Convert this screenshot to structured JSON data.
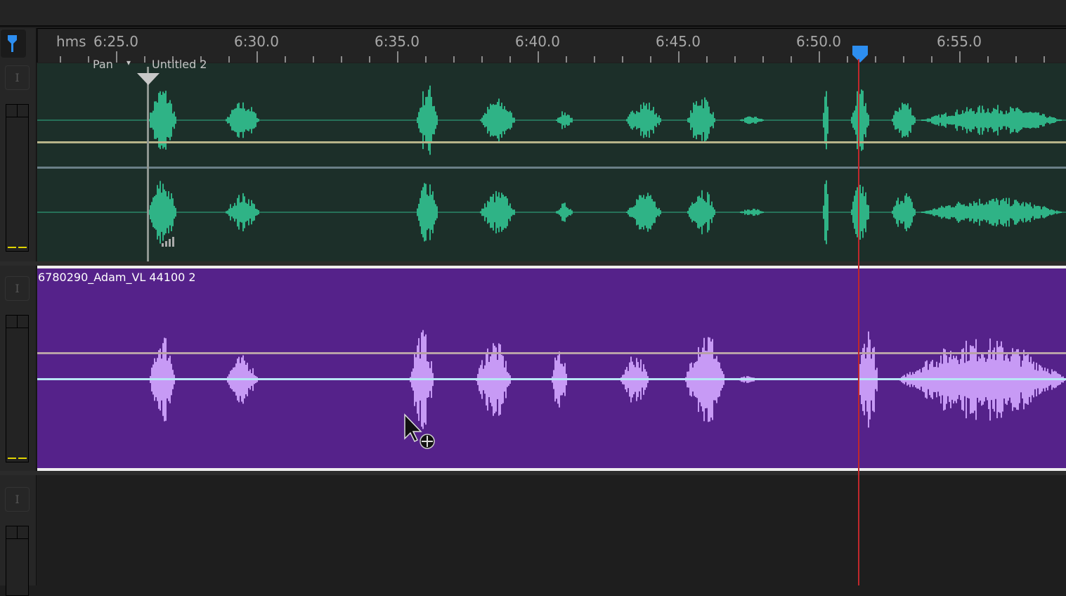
{
  "ruler": {
    "unit_label": "hms",
    "major_labels": [
      "6:25.0",
      "6:30.0",
      "6:35.0",
      "6:40.0",
      "6:45.0",
      "6:50.0",
      "6:55.0"
    ],
    "playhead_time": "6:51.4"
  },
  "tracks": [
    {
      "clip_name": "Untitled 2",
      "param_label": "Pan",
      "waveform_color": "#2fb386",
      "background": "#1c2f29"
    },
    {
      "clip_name": "6780290_Adam_VL 44100 2",
      "waveform_color": "#c79af5",
      "background": "#55228a"
    },
    {}
  ],
  "colors": {
    "playhead": "#c0282c",
    "marker": "#2d8ef0",
    "meter_peak": "#e0d400"
  }
}
